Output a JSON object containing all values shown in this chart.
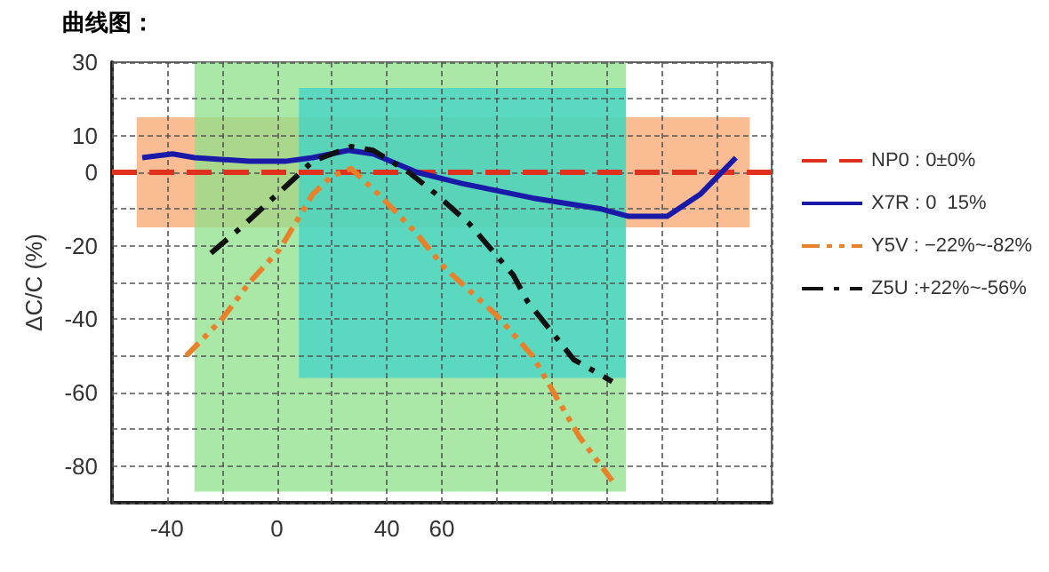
{
  "chart_data": {
    "type": "line",
    "title": "曲线图：",
    "ylabel": "ΔC/C (%)",
    "xlim": [
      -60,
      180
    ],
    "ylim": [
      -90,
      30
    ],
    "xticks": [
      {
        "value": -60,
        "label": null
      },
      -40,
      {
        "value": -20,
        "label": null
      },
      0,
      {
        "value": 20,
        "label": null
      },
      40,
      60,
      {
        "value": 80,
        "label": null
      },
      {
        "value": 100,
        "label": null
      },
      {
        "value": 120,
        "label": null
      },
      {
        "value": 140,
        "label": null
      },
      {
        "value": 160,
        "label": null
      },
      {
        "value": 180,
        "label": null
      }
    ],
    "yticks": [
      {
        "value": -90,
        "label": null
      },
      -80,
      {
        "value": -70,
        "label": null
      },
      -60,
      {
        "value": -50,
        "label": null
      },
      -40,
      {
        "value": -30,
        "label": null
      },
      -20,
      {
        "value": -10,
        "label": null
      },
      0,
      10,
      {
        "value": 20,
        "label": null
      },
      30
    ],
    "grid": true,
    "legend": "right",
    "marker": "none",
    "series": [
      {
        "type": "area",
        "color": "#f7a56f",
        "x": [
          -51,
          172
        ],
        "values": [
          null,
          null
        ],
        "lower": [
          -15,
          -15
        ],
        "upper": [
          15,
          15
        ]
      },
      {
        "type": "area",
        "color": "#8ee08a",
        "x": [
          -30,
          127
        ],
        "values": [
          null,
          null
        ],
        "lower": [
          -87,
          -87
        ],
        "upper": [
          30,
          30
        ]
      },
      {
        "type": "area",
        "color": "#3fd3c8",
        "x": [
          8,
          127
        ],
        "values": [
          null,
          null
        ],
        "lower": [
          -56,
          -56
        ],
        "upper": [
          23,
          23
        ]
      },
      {
        "name": "NP0 : 0±0%",
        "color": "#e0301e",
        "line_style": "dashed",
        "x": [
          -60,
          180
        ],
        "values": [
          0,
          0
        ]
      },
      {
        "name": "X7R : 0  15%",
        "color": "#1a1aa8",
        "line_style": "solid",
        "x": [
          -49,
          -38,
          -30,
          -10,
          3,
          13,
          26,
          35,
          51,
          67,
          93,
          118,
          128,
          142,
          154,
          167
        ],
        "values": [
          4,
          5,
          4,
          3,
          3,
          4,
          6,
          5,
          0,
          -3,
          -7,
          -10,
          -12,
          -12,
          -6,
          4
        ]
      },
      {
        "name": "Y5V : −22%~-82%",
        "color": "#e8822a",
        "line_style": "dashdotdot",
        "x": [
          -33,
          -20,
          -10,
          1,
          13,
          20,
          27,
          37,
          50,
          61,
          80,
          93,
          110,
          122
        ],
        "values": [
          -50,
          -40,
          -30,
          -21,
          -6,
          -1,
          1,
          -6,
          -16,
          -26,
          -39,
          -50,
          -72,
          -84
        ]
      },
      {
        "name": "Z5U :+22%~-56%",
        "color": "#111111",
        "line_style": "dashdot",
        "x": [
          -24,
          -13,
          3,
          13,
          27,
          35,
          48,
          58,
          70,
          86,
          91,
          108,
          122
        ],
        "values": [
          -22,
          -15,
          -4,
          3,
          7,
          6,
          0,
          -6,
          -14,
          -28,
          -35,
          -51,
          -57
        ]
      }
    ]
  }
}
